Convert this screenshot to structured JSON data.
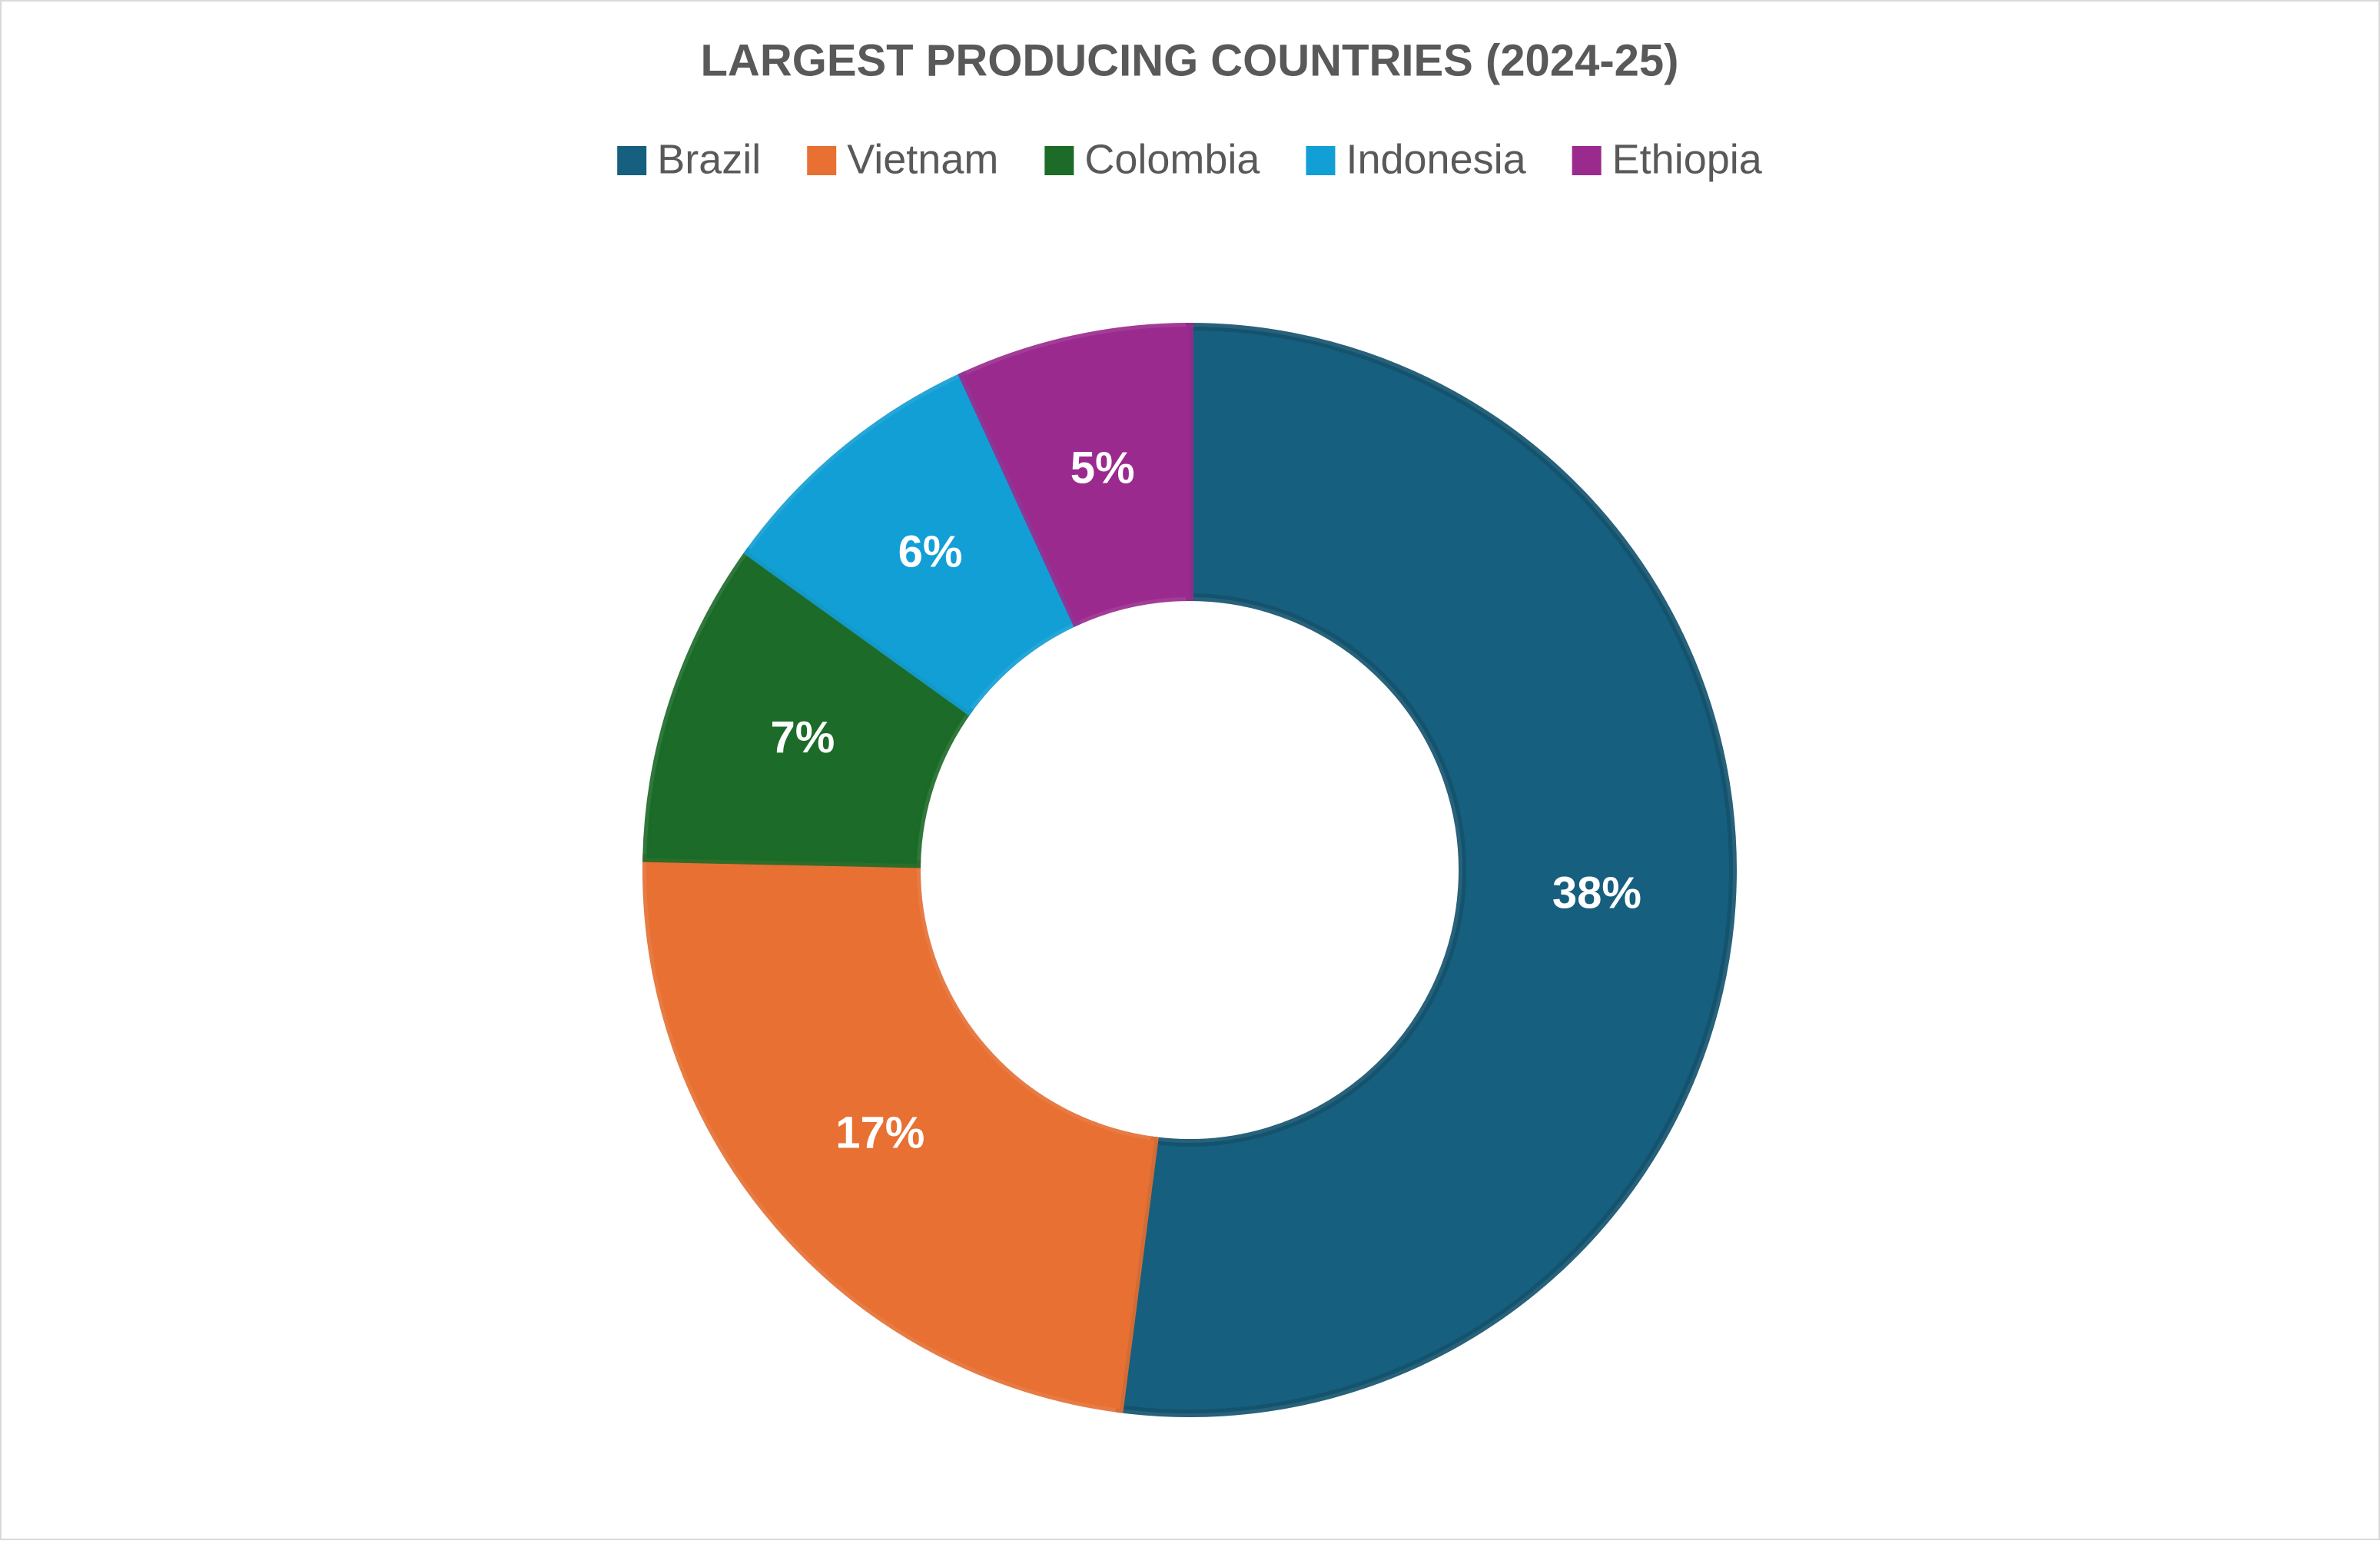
{
  "chart_data": {
    "type": "doughnut",
    "title": "LARGEST PRODUCING COUNTRIES (2024-25)",
    "categories": [
      "Brazil",
      "Vietnam",
      "Colombia",
      "Indonesia",
      "Ethiopia"
    ],
    "values": [
      38,
      17,
      7,
      6,
      5
    ],
    "value_labels": [
      "38%",
      "17%",
      "7%",
      "6%",
      "5%"
    ],
    "colors": [
      "#175f7e",
      "#e87033",
      "#1c6b28",
      "#129fd6",
      "#9b2a8f"
    ],
    "legend": "top"
  }
}
